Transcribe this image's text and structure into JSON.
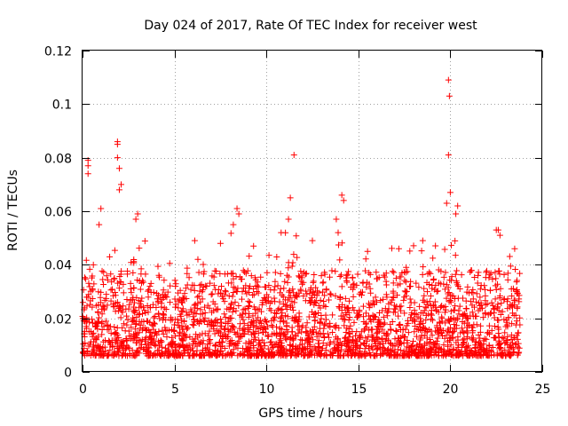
{
  "chart_data": {
    "type": "scatter",
    "title": "Day 024 of 2017, Rate Of TEC Index for receiver west",
    "xlabel": "GPS time / hours",
    "ylabel": "ROTI / TECUs",
    "xlim": [
      0,
      25
    ],
    "ylim": [
      0,
      0.12
    ],
    "xticks": [
      "0",
      "5",
      "10",
      "15",
      "20",
      "25"
    ],
    "yticks": [
      "0",
      "0.02",
      "0.04",
      "0.06",
      "0.08",
      "0.1",
      "0.12"
    ],
    "grid": true,
    "marker": "+",
    "color": "#ff0000",
    "series": [
      {
        "name": "ROTI",
        "notable_points": [
          [
            0.3,
            0.079
          ],
          [
            0.3,
            0.077
          ],
          [
            0.3,
            0.074
          ],
          [
            1.9,
            0.086
          ],
          [
            1.9,
            0.085
          ],
          [
            1.9,
            0.08
          ],
          [
            2.0,
            0.076
          ],
          [
            2.1,
            0.07
          ],
          [
            2.0,
            0.068
          ],
          [
            11.5,
            0.081
          ],
          [
            11.3,
            0.065
          ],
          [
            11.2,
            0.057
          ],
          [
            14.1,
            0.066
          ],
          [
            14.2,
            0.064
          ],
          [
            13.8,
            0.057
          ],
          [
            13.9,
            0.052
          ],
          [
            19.9,
            0.109
          ],
          [
            19.95,
            0.103
          ],
          [
            19.9,
            0.081
          ],
          [
            20.0,
            0.067
          ],
          [
            19.8,
            0.063
          ],
          [
            20.4,
            0.062
          ],
          [
            20.3,
            0.059
          ],
          [
            8.4,
            0.061
          ],
          [
            8.5,
            0.059
          ],
          [
            8.2,
            0.055
          ],
          [
            3.0,
            0.059
          ],
          [
            2.9,
            0.057
          ],
          [
            1.0,
            0.061
          ],
          [
            0.9,
            0.055
          ],
          [
            6.1,
            0.049
          ],
          [
            7.5,
            0.048
          ],
          [
            9.3,
            0.047
          ],
          [
            10.8,
            0.052
          ],
          [
            12.5,
            0.049
          ],
          [
            15.5,
            0.045
          ],
          [
            17.2,
            0.046
          ],
          [
            18.5,
            0.049
          ],
          [
            22.5,
            0.053
          ],
          [
            22.7,
            0.051
          ],
          [
            23.5,
            0.046
          ]
        ],
        "bulk_description": "dense cloud of points over 0-23.8 h, mostly between 0.005 and 0.04 TECU"
      }
    ]
  }
}
